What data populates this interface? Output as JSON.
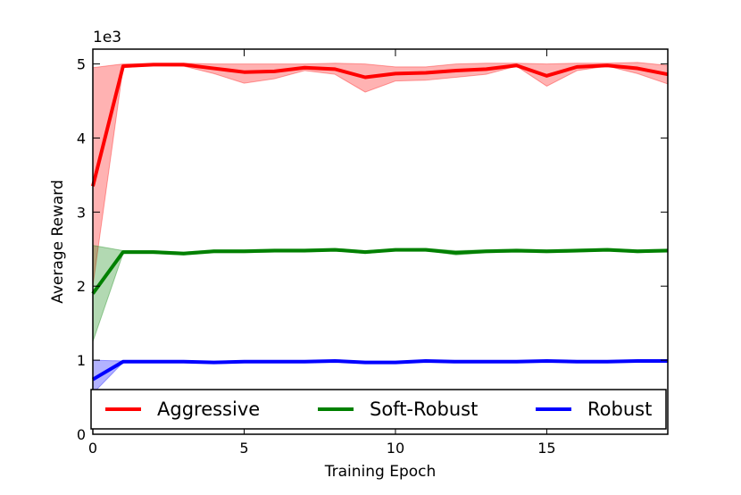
{
  "chart_data": {
    "type": "line",
    "title": "",
    "xlabel": "Training Epoch",
    "ylabel": "Average Reward",
    "y_multiplier_label": "1e3",
    "xlim": [
      0,
      19
    ],
    "ylim": [
      0,
      5.2
    ],
    "x_ticks": [
      0,
      5,
      10,
      15
    ],
    "y_ticks": [
      0,
      1,
      2,
      3,
      4,
      5
    ],
    "x": [
      0,
      1,
      2,
      3,
      4,
      5,
      6,
      7,
      8,
      9,
      10,
      11,
      12,
      13,
      14,
      15,
      16,
      17,
      18,
      19
    ],
    "legend_position": "bottom",
    "series": [
      {
        "name": "Aggressive",
        "color": "#ff0000",
        "values": [
          3.35,
          4.97,
          4.99,
          4.99,
          4.94,
          4.89,
          4.9,
          4.95,
          4.93,
          4.82,
          4.87,
          4.88,
          4.91,
          4.93,
          4.98,
          4.84,
          4.96,
          4.98,
          4.94,
          4.86
        ],
        "band_low": [
          2.0,
          4.95,
          4.98,
          4.97,
          4.87,
          4.74,
          4.8,
          4.91,
          4.86,
          4.62,
          4.77,
          4.78,
          4.82,
          4.86,
          4.97,
          4.7,
          4.91,
          4.97,
          4.87,
          4.73
        ],
        "band_high": [
          4.95,
          5.0,
          5.01,
          5.01,
          5.0,
          5.0,
          5.0,
          5.0,
          5.01,
          5.0,
          4.96,
          4.96,
          5.0,
          5.01,
          5.01,
          5.0,
          5.01,
          5.01,
          5.02,
          4.98
        ]
      },
      {
        "name": "Soft-Robust",
        "color": "#008000",
        "values": [
          1.9,
          2.46,
          2.46,
          2.44,
          2.47,
          2.47,
          2.48,
          2.48,
          2.49,
          2.46,
          2.49,
          2.49,
          2.45,
          2.47,
          2.48,
          2.47,
          2.48,
          2.49,
          2.47,
          2.48
        ],
        "band_low": [
          1.25,
          2.44,
          2.44,
          2.42,
          2.45,
          2.45,
          2.46,
          2.46,
          2.48,
          2.44,
          2.48,
          2.48,
          2.42,
          2.45,
          2.46,
          2.45,
          2.46,
          2.48,
          2.45,
          2.47
        ],
        "band_high": [
          2.55,
          2.48,
          2.48,
          2.46,
          2.49,
          2.49,
          2.5,
          2.5,
          2.51,
          2.48,
          2.5,
          2.51,
          2.48,
          2.49,
          2.5,
          2.49,
          2.5,
          2.51,
          2.49,
          2.5
        ]
      },
      {
        "name": "Robust",
        "color": "#0000ff",
        "values": [
          0.74,
          0.98,
          0.98,
          0.98,
          0.97,
          0.98,
          0.98,
          0.98,
          0.99,
          0.97,
          0.97,
          0.99,
          0.98,
          0.98,
          0.98,
          0.99,
          0.98,
          0.98,
          0.99,
          0.99
        ],
        "band_low": [
          0.55,
          0.97,
          0.97,
          0.97,
          0.96,
          0.97,
          0.97,
          0.97,
          0.98,
          0.96,
          0.96,
          0.98,
          0.97,
          0.97,
          0.97,
          0.98,
          0.97,
          0.97,
          0.98,
          0.98
        ],
        "band_high": [
          1.0,
          0.99,
          0.99,
          0.99,
          0.98,
          0.99,
          0.99,
          0.99,
          1.0,
          0.98,
          0.98,
          1.0,
          0.99,
          0.99,
          0.99,
          1.0,
          0.99,
          0.99,
          1.0,
          1.0
        ]
      }
    ]
  }
}
